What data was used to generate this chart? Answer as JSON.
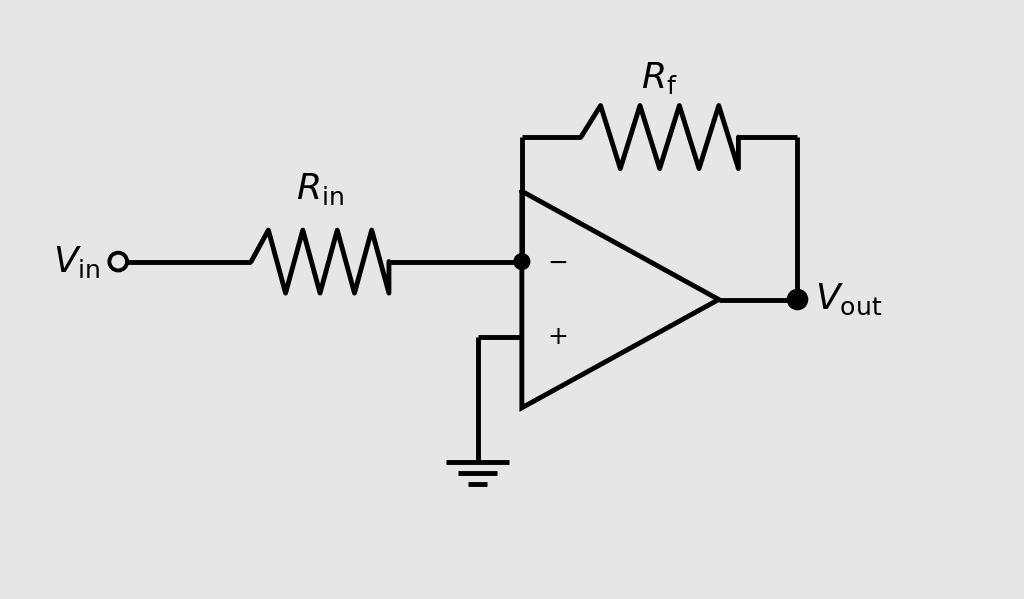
{
  "background_color": "#e6e6e6",
  "line_color": "#000000",
  "line_width": 3.5,
  "text_color": "#000000",
  "vin_label": "$V_{\\mathrm{in}}$",
  "vout_label": "$V_{\\mathrm{out}}$",
  "rin_label": "$R_{\\mathrm{in}}$",
  "rf_label": "$R_{\\mathrm{f}}$",
  "figsize": [
    10.24,
    5.99
  ],
  "dpi": 100,
  "xlim": [
    0,
    10
  ],
  "ylim": [
    0,
    6
  ]
}
